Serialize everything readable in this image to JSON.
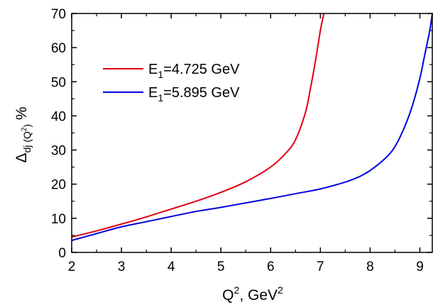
{
  "chart_data": {
    "type": "line",
    "title": "",
    "xlabel": {
      "base": "Q",
      "sup": "2",
      "mid": ",  GeV",
      "sup2": "2"
    },
    "ylabel": {
      "delta": "Δ",
      "sub": "dj (Q",
      "subsup": "2",
      "subend": ")",
      "unit": " %"
    },
    "xlim": [
      2,
      9.25
    ],
    "ylim": [
      0,
      70
    ],
    "x_ticks": [
      2,
      3,
      4,
      5,
      6,
      7,
      8,
      9
    ],
    "y_ticks": [
      0,
      10,
      20,
      30,
      40,
      50,
      60,
      70
    ],
    "grid": false,
    "legend_position": "upper-left",
    "series": [
      {
        "name_prefix": "E",
        "name_sub": "1",
        "name_suffix": "=4.725 GeV",
        "color": "#e0000f",
        "x": [
          2.0,
          2.5,
          3.0,
          3.5,
          4.0,
          4.5,
          5.0,
          5.5,
          6.0,
          6.3,
          6.5,
          6.7,
          6.8,
          6.9,
          7.0,
          7.07
        ],
        "y": [
          4.5,
          6.3,
          8.3,
          10.4,
          12.7,
          15.0,
          17.6,
          20.7,
          25.0,
          29.0,
          33.0,
          41.0,
          48.0,
          56.0,
          65.0,
          70.0
        ]
      },
      {
        "name_prefix": "E",
        "name_sub": "1",
        "name_suffix": "=5.895 GeV",
        "color": "#0000e0",
        "x": [
          2.0,
          2.5,
          3.0,
          3.5,
          4.0,
          4.5,
          5.0,
          5.5,
          6.0,
          6.5,
          7.0,
          7.5,
          7.8,
          8.0,
          8.3,
          8.5,
          8.7,
          8.85,
          9.0,
          9.1,
          9.2,
          9.25
        ],
        "y": [
          3.5,
          5.5,
          7.5,
          9.0,
          10.5,
          12.0,
          13.2,
          14.5,
          15.8,
          17.2,
          18.6,
          20.6,
          22.3,
          24.0,
          27.5,
          31.0,
          37.0,
          43.0,
          51.0,
          58.0,
          65.0,
          70.0
        ]
      }
    ]
  }
}
